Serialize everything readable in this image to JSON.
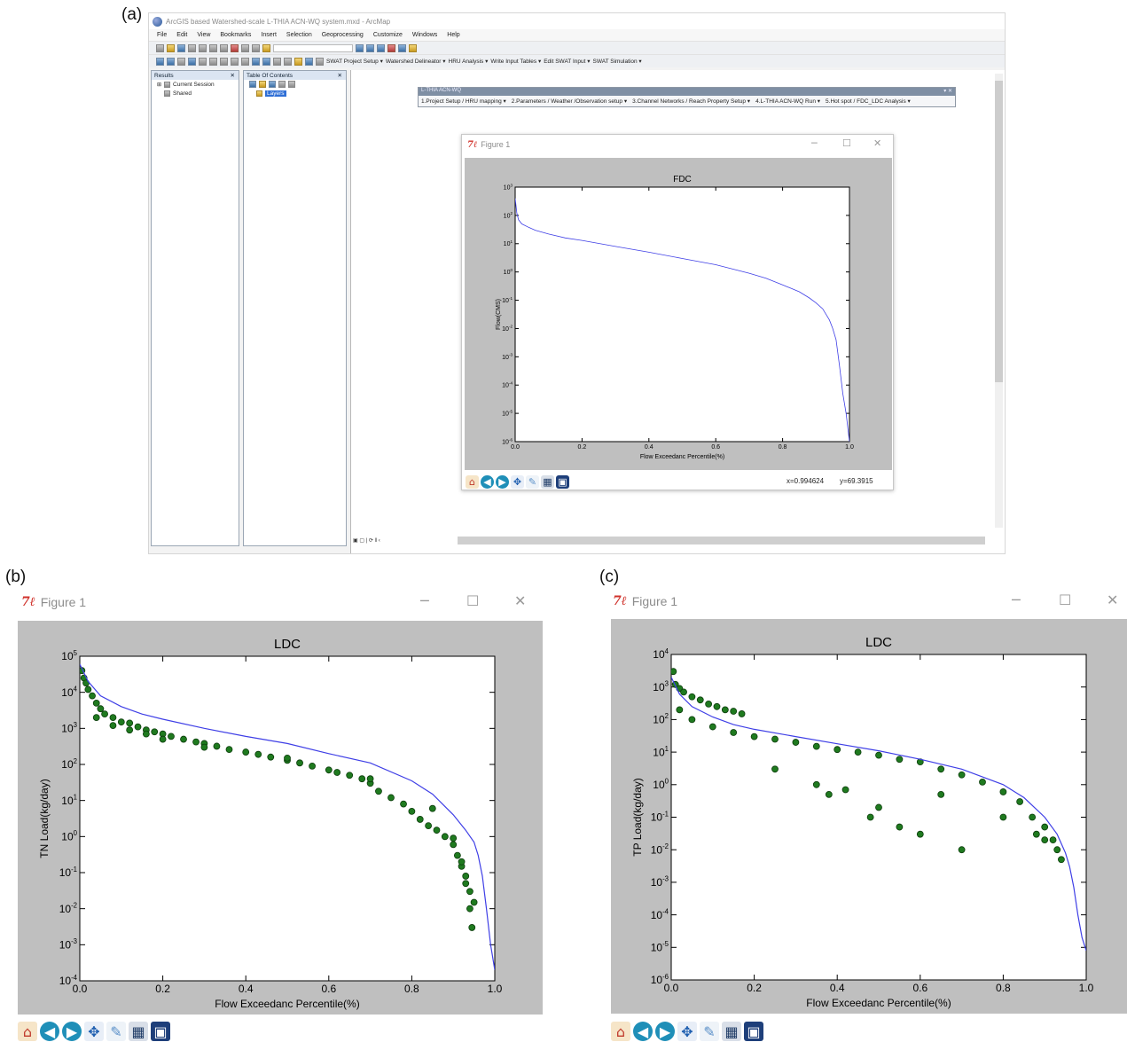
{
  "panel_labels": {
    "a": "(a)",
    "b": "(b)",
    "c": "(c)"
  },
  "arcmap": {
    "title": "ArcGIS based Watershed-scale L-THIA ACN-WQ system.mxd - ArcMap",
    "menu": [
      "File",
      "Edit",
      "View",
      "Bookmarks",
      "Insert",
      "Selection",
      "Geoprocessing",
      "Customize",
      "Windows",
      "Help"
    ],
    "swat_toolbar": [
      "SWAT Project Setup ▾",
      "Watershed Delineator ▾",
      "HRU Analysis ▾",
      "Write Input Tables ▾",
      "Edit SWAT Input ▾",
      "SWAT Simulation ▾"
    ],
    "results_pane": {
      "title": "Results",
      "items": [
        "Current Session",
        "Shared"
      ]
    },
    "toc_pane": {
      "title": "Table Of Contents",
      "layers_label": "Layers"
    },
    "lthia_toolbar": {
      "title": "L-THIA ACN-WQ",
      "menus": [
        "1.Project Setup / HRU mapping ▾",
        "2.Parameters / Weather /Observation setup ▾",
        "3.Channel Networks / Reach Property Setup ▾",
        "4.L-THIA ACN-WQ Run ▾",
        "5.Hot spot / FDC_LDC Analysis ▾"
      ]
    }
  },
  "figures": {
    "a": {
      "window_title": "Figure 1",
      "coords": {
        "x": "x=0.994624",
        "y": "y=69.3915"
      }
    },
    "b": {
      "window_title": "Figure 1"
    },
    "c": {
      "window_title": "Figure 1"
    }
  },
  "icons": [
    "home-icon",
    "back-icon",
    "forward-icon",
    "pan-icon",
    "zoom-rect-icon",
    "subplots-icon",
    "save-icon"
  ],
  "colors": {
    "curve": "#3f3fe6",
    "points_fill": "#1f7a1f",
    "points_edge": "#0c3d0c",
    "plot_bg": "#bfbfbf"
  },
  "chart_data": [
    {
      "id": "fdc",
      "type": "line",
      "title": "FDC",
      "xlabel": "Flow Exceedanc Percentile(%)",
      "ylabel": "Flow(CMS)",
      "x_ticks": [
        0.0,
        0.2,
        0.4,
        0.6,
        0.8,
        1.0
      ],
      "x_tick_labels": [
        "0.0",
        "0.2",
        "0.4",
        "0.6",
        "0.8",
        "1.0"
      ],
      "y_tick_exponents": [
        -6,
        -5,
        -4,
        -3,
        -2,
        -1,
        0,
        1,
        2,
        3
      ],
      "xlim": [
        0,
        1
      ],
      "ylim_log10": [
        -6,
        3
      ],
      "yscale": "log",
      "series": [
        {
          "x": [
            0.0,
            0.005,
            0.01,
            0.02,
            0.04,
            0.06,
            0.1,
            0.15,
            0.2,
            0.3,
            0.4,
            0.5,
            0.6,
            0.7,
            0.75,
            0.8,
            0.85,
            0.88,
            0.9,
            0.92,
            0.94,
            0.95,
            0.96,
            0.97,
            0.98,
            0.99,
            1.0
          ],
          "y": [
            400,
            120,
            70,
            50,
            38,
            30,
            22,
            16,
            13,
            8,
            5,
            3,
            1.8,
            0.9,
            0.6,
            0.35,
            0.2,
            0.12,
            0.08,
            0.05,
            0.02,
            0.01,
            0.004,
            0.0005,
            5e-05,
            1e-05,
            1e-06
          ]
        }
      ]
    },
    {
      "id": "ldc_tn",
      "type": "scatter",
      "title": "LDC",
      "xlabel": "Flow Exceedanc Percentile(%)",
      "ylabel": "TN Load(kg/day)",
      "x_ticks": [
        0.0,
        0.2,
        0.4,
        0.6,
        0.8,
        1.0
      ],
      "x_tick_labels": [
        "0.0",
        "0.2",
        "0.4",
        "0.6",
        "0.8",
        "1.0"
      ],
      "y_tick_exponents": [
        -4,
        -3,
        -2,
        -1,
        0,
        1,
        2,
        3,
        4,
        5
      ],
      "xlim": [
        0,
        1
      ],
      "ylim_log10": [
        -4,
        5
      ],
      "yscale": "log",
      "series": [
        {
          "kind": "line",
          "x": [
            0.0,
            0.02,
            0.05,
            0.1,
            0.15,
            0.2,
            0.3,
            0.4,
            0.5,
            0.6,
            0.7,
            0.8,
            0.85,
            0.9,
            0.93,
            0.95,
            0.96,
            0.97,
            0.98,
            0.99,
            1.0
          ],
          "y": [
            60000,
            20000,
            8000,
            4000,
            2500,
            1800,
            1000,
            600,
            380,
            200,
            110,
            35,
            15,
            4,
            1.5,
            0.7,
            0.3,
            0.08,
            0.01,
            0.001,
            0.0002
          ]
        },
        {
          "kind": "scatter",
          "x": [
            0.005,
            0.01,
            0.015,
            0.02,
            0.03,
            0.04,
            0.05,
            0.06,
            0.08,
            0.1,
            0.12,
            0.14,
            0.16,
            0.18,
            0.2,
            0.22,
            0.25,
            0.28,
            0.3,
            0.33,
            0.36,
            0.4,
            0.43,
            0.46,
            0.5,
            0.53,
            0.56,
            0.6,
            0.62,
            0.65,
            0.68,
            0.7,
            0.72,
            0.75,
            0.78,
            0.8,
            0.82,
            0.84,
            0.86,
            0.88,
            0.9,
            0.91,
            0.92,
            0.93,
            0.94,
            0.95,
            0.04,
            0.08,
            0.12,
            0.16,
            0.2,
            0.3,
            0.5,
            0.7,
            0.85,
            0.9,
            0.92,
            0.93,
            0.94,
            0.945
          ],
          "y": [
            40000,
            25000,
            18000,
            12000,
            8000,
            5000,
            3500,
            2500,
            2000,
            1500,
            1400,
            1100,
            900,
            800,
            700,
            600,
            500,
            420,
            380,
            320,
            260,
            220,
            190,
            160,
            130,
            110,
            90,
            70,
            60,
            50,
            40,
            30,
            18,
            12,
            8,
            5,
            3,
            2,
            1.5,
            1,
            0.6,
            0.3,
            0.15,
            0.08,
            0.03,
            0.015,
            2000,
            1200,
            900,
            700,
            500,
            300,
            150,
            40,
            6,
            0.9,
            0.2,
            0.05,
            0.01,
            0.003
          ]
        }
      ]
    },
    {
      "id": "ldc_tp",
      "type": "scatter",
      "title": "LDC",
      "xlabel": "Flow Exceedanc Percentile(%)",
      "ylabel": "TP Load(kg/day)",
      "x_ticks": [
        0.0,
        0.2,
        0.4,
        0.6,
        0.8,
        1.0
      ],
      "x_tick_labels": [
        "0.0",
        "0.2",
        "0.4",
        "0.6",
        "0.8",
        "1.0"
      ],
      "y_tick_exponents": [
        -6,
        -5,
        -4,
        -3,
        -2,
        -1,
        0,
        1,
        2,
        3,
        4
      ],
      "xlim": [
        0,
        1
      ],
      "ylim_log10": [
        -6,
        4
      ],
      "yscale": "log",
      "series": [
        {
          "kind": "line",
          "x": [
            0.0,
            0.02,
            0.05,
            0.1,
            0.15,
            0.2,
            0.3,
            0.4,
            0.5,
            0.6,
            0.7,
            0.8,
            0.85,
            0.9,
            0.93,
            0.95,
            0.96,
            0.97,
            0.98,
            0.99,
            1.0
          ],
          "y": [
            2000,
            600,
            250,
            120,
            70,
            50,
            30,
            18,
            11,
            6,
            3,
            1,
            0.4,
            0.1,
            0.03,
            0.008,
            0.003,
            0.0007,
            0.0001,
            2e-05,
            8e-06
          ]
        },
        {
          "kind": "scatter",
          "x": [
            0.005,
            0.01,
            0.02,
            0.03,
            0.05,
            0.07,
            0.09,
            0.11,
            0.13,
            0.15,
            0.17,
            0.02,
            0.05,
            0.1,
            0.15,
            0.2,
            0.25,
            0.3,
            0.35,
            0.4,
            0.45,
            0.5,
            0.55,
            0.6,
            0.65,
            0.7,
            0.75,
            0.8,
            0.84,
            0.87,
            0.9,
            0.92,
            0.94,
            0.25,
            0.35,
            0.38,
            0.42,
            0.48,
            0.5,
            0.55,
            0.6,
            0.65,
            0.7,
            0.8,
            0.88,
            0.9,
            0.93
          ],
          "y": [
            3000,
            1200,
            900,
            700,
            500,
            400,
            300,
            250,
            200,
            180,
            150,
            200,
            100,
            60,
            40,
            30,
            25,
            20,
            15,
            12,
            10,
            8,
            6,
            5,
            3,
            2,
            1.2,
            0.6,
            0.3,
            0.1,
            0.05,
            0.02,
            0.005,
            3,
            1,
            0.5,
            0.7,
            0.1,
            0.2,
            0.05,
            0.03,
            0.5,
            0.01,
            0.1,
            0.03,
            0.02,
            0.01
          ]
        }
      ]
    }
  ]
}
